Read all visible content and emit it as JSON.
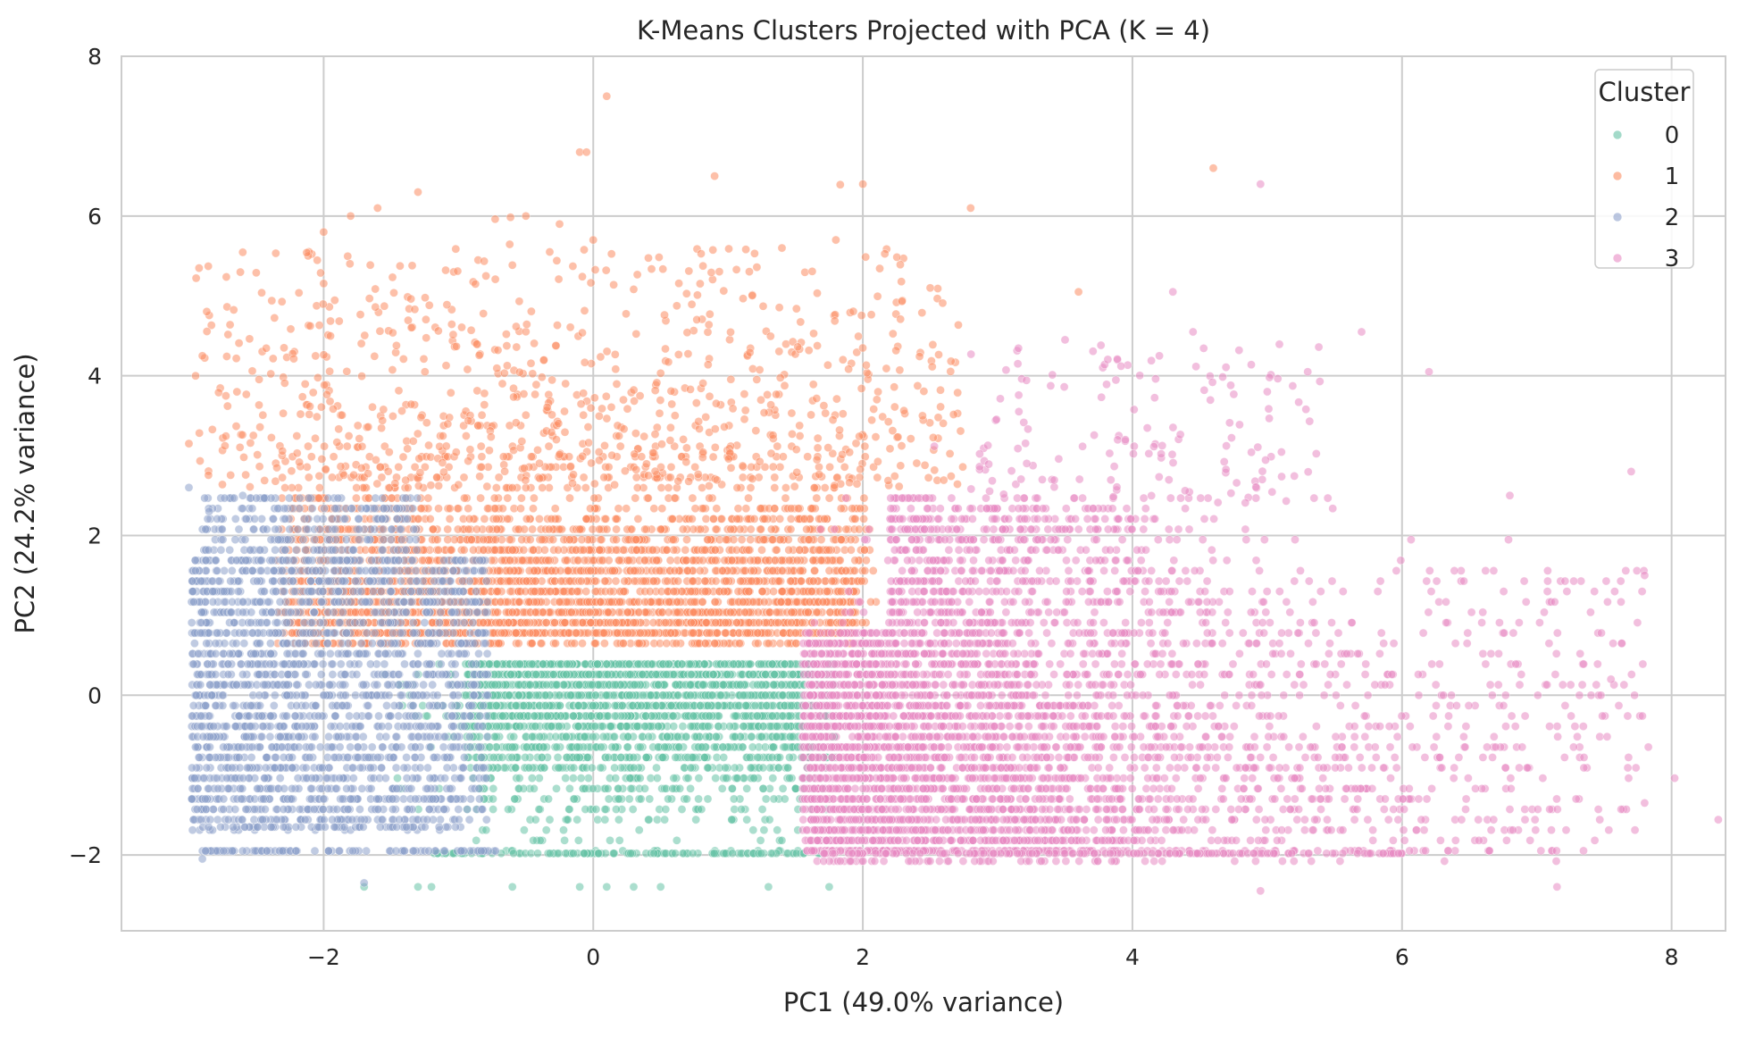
{
  "chart_data": {
    "type": "scatter",
    "title": "K-Means Clusters Projected with PCA (K = 4)",
    "xlabel": "PC1 (49.0% variance)",
    "ylabel": "PC2 (24.2% variance)",
    "xlim": [
      -3.5,
      8.4
    ],
    "ylim": [
      -2.95,
      8.0
    ],
    "xticks": [
      -2,
      0,
      2,
      4,
      6,
      8
    ],
    "xtick_labels": [
      "−2",
      "0",
      "2",
      "4",
      "6",
      "8"
    ],
    "yticks": [
      -2,
      0,
      2,
      4,
      6,
      8
    ],
    "ytick_labels": [
      "−2",
      "0",
      "2",
      "4",
      "6",
      "8"
    ],
    "grid": true,
    "legend": {
      "title": "Cluster",
      "placement": "top-right",
      "entries": [
        "0",
        "1",
        "2",
        "3"
      ]
    },
    "series": [
      {
        "name": "0",
        "color": "#66c2a5",
        "approx_region": {
          "x": [
            -1.0,
            1.8
          ],
          "y": [
            -2.0,
            0.6
          ]
        },
        "points": [
          [
            -1.3,
            -2.4
          ],
          [
            -1.2,
            -2.4
          ],
          [
            -0.6,
            -2.4
          ],
          [
            -0.1,
            -2.4
          ],
          [
            0.1,
            -2.4
          ],
          [
            0.3,
            -2.4
          ],
          [
            0.5,
            -2.4
          ],
          [
            1.3,
            -2.4
          ],
          [
            1.75,
            -2.4
          ],
          [
            -1.7,
            -2.4
          ]
        ]
      },
      {
        "name": "1",
        "color": "#fc8d62",
        "approx_region": {
          "x": [
            -3.0,
            2.8
          ],
          "y": [
            0.6,
            4.5
          ]
        },
        "points": [
          [
            0.1,
            7.5
          ],
          [
            -0.1,
            6.8
          ],
          [
            -0.05,
            6.8
          ],
          [
            0.9,
            6.5
          ],
          [
            2.0,
            6.4
          ],
          [
            4.6,
            6.6
          ],
          [
            -1.3,
            6.3
          ],
          [
            -1.6,
            6.1
          ],
          [
            -1.8,
            6.0
          ],
          [
            2.8,
            6.1
          ],
          [
            -0.5,
            6.0
          ],
          [
            -2.0,
            5.8
          ],
          [
            0.0,
            5.7
          ],
          [
            1.8,
            5.7
          ],
          [
            1.4,
            5.6
          ],
          [
            3.6,
            5.05
          ],
          [
            -3.0,
            3.15
          ],
          [
            -2.9,
            4.25
          ],
          [
            2.5,
            5.1
          ],
          [
            -0.25,
            5.9
          ]
        ]
      },
      {
        "name": "2",
        "color": "#8da0cb",
        "approx_region": {
          "x": [
            -3.0,
            -0.8
          ],
          "y": [
            -2.0,
            2.6
          ]
        },
        "points": [
          [
            -1.7,
            -2.35
          ],
          [
            -3.0,
            2.6
          ],
          [
            -2.85,
            2.3
          ],
          [
            -2.6,
            2.5
          ],
          [
            -2.9,
            -2.05
          ]
        ]
      },
      {
        "name": "3",
        "color": "#e78ac3",
        "approx_region": {
          "x": [
            1.5,
            7.8
          ],
          "y": [
            -2.4,
            3.0
          ]
        },
        "points": [
          [
            4.95,
            6.4
          ],
          [
            4.3,
            5.05
          ],
          [
            5.7,
            4.55
          ],
          [
            4.45,
            4.55
          ],
          [
            6.2,
            4.05
          ],
          [
            7.7,
            2.8
          ],
          [
            7.8,
            1.5
          ],
          [
            7.15,
            -2.4
          ],
          [
            4.95,
            -2.45
          ],
          [
            4.2,
            4.25
          ],
          [
            3.15,
            4.15
          ],
          [
            3.5,
            4.45
          ],
          [
            5.0,
            3.8
          ],
          [
            6.8,
            2.5
          ],
          [
            7.55,
            0.2
          ],
          [
            7.8,
            -1.35
          ]
        ]
      }
    ]
  }
}
